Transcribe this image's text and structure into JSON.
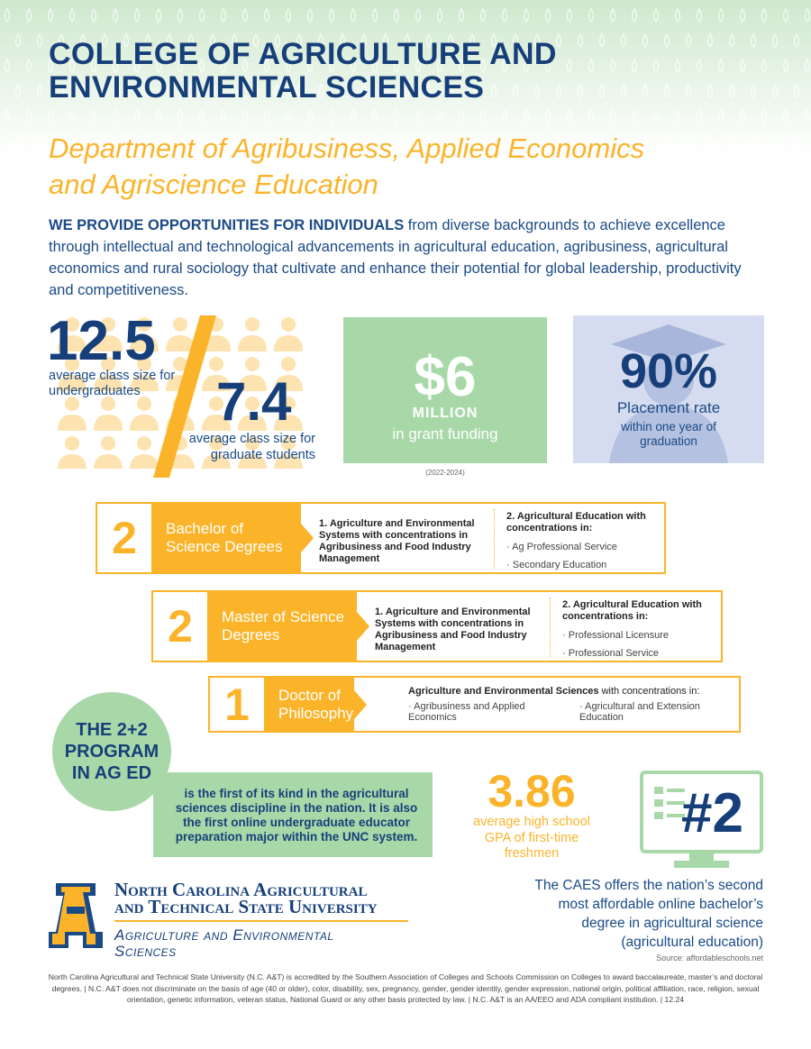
{
  "header": {
    "title_line1": "COLLEGE OF AGRICULTURE AND",
    "title_line2": "ENVIRONMENTAL SCIENCES",
    "dept_line1": "Department of Agribusiness, Applied Economics",
    "dept_line2": "and Agriscience Education"
  },
  "intro": {
    "lead": "WE PROVIDE OPPORTUNITIES FOR INDIVIDUALS",
    "rest": " from diverse backgrounds to achieve excellence through intellectual and technological advancements in agricultural education, agribusiness, agricultural economics and rural sociology that cultivate and enhance their potential for global leadership, productivity and competitiveness."
  },
  "stats": {
    "undergrad": {
      "value": "12.5",
      "label": "average class size for undergraduates"
    },
    "grad": {
      "value": "7.4",
      "label": "average class size for graduate students"
    },
    "grant": {
      "value": "$6",
      "unit": "MILLION",
      "label": "in grant funding",
      "note": "(2022-2024)"
    },
    "placement": {
      "value": "90%",
      "label": "Placement rate",
      "sub": "within one year of graduation"
    }
  },
  "degrees": [
    {
      "count": "2",
      "label": "Bachelor of Science Degrees",
      "item1": "1. Agriculture and Environmental Systems with concentrations in Agribusiness and Food Industry Management",
      "item2": "2. Agricultural Education with concentrations in:",
      "conc": [
        "Ag Professional Service",
        "Secondary Education"
      ]
    },
    {
      "count": "2",
      "label": "Master of Science Degrees",
      "item1": "1. Agriculture and Environmental Systems with concentrations in Agribusiness and Food Industry Management",
      "item2": "2. Agricultural Education with concentrations in:",
      "conc": [
        "Professional Licensure",
        "Professional Service"
      ]
    },
    {
      "count": "1",
      "label": "Doctor of Philosophy",
      "heading_bold": "Agriculture and Environmental Sciences",
      "heading_rest": " with concentrations in:",
      "conc": [
        "Agribusiness and Applied Economics",
        "Agricultural and Extension Education"
      ]
    }
  ],
  "program": {
    "title": "THE 2+2 PROGRAM IN AG ED",
    "text": "is the first of its kind in the agricultural sciences discipline in the nation. It is also the first online undergraduate educator preparation major within the UNC system."
  },
  "gpa": {
    "value": "3.86",
    "label": "average high school GPA of first-time freshmen"
  },
  "rank": {
    "value": "#2",
    "text": "The CAES offers the nation’s second most affordable online bachelor’s degree in agricultural science (agricultural education)",
    "source": "Source: affordableschools.net"
  },
  "logo": {
    "line1": "North Carolina Agricultural",
    "line2": "and Technical State University",
    "sub1": "Agriculture and Environmental",
    "sub2": "Sciences"
  },
  "footer": "North Carolina Agricultural and Technical State University (N.C. A&T) is accredited by the Southern Association of Colleges and Schools Commission on Colleges to award baccalaureate, master’s and doctoral degrees.   |  N.C. A&T does not discriminate on the basis of age (40 or older), color, disability, sex, pregnancy, gender, gender identity, gender expression, national origin, political affiliation, race, religion, sexual orientation, genetic information, veteran status, National Guard or any other basis protected by law.  |  N.C. A&T is an AA/EEO and ADA compliant institution.  |  12.24",
  "colors": {
    "navy": "#163f7a",
    "gold": "#fbb42a",
    "green": "#a8d8a8",
    "lavender": "#d6dcef"
  }
}
